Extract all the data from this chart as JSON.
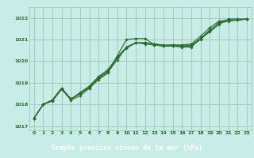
{
  "bg_color": "#c8ece6",
  "grid_color": "#a0ccbb",
  "line_color": "#2d6a2d",
  "marker_color": "#2d6a2d",
  "title": "Graphe pression niveau de la mer (hPa)",
  "title_bg": "#2d6a2d",
  "title_fg": "#ffffff",
  "ylim": [
    1016.8,
    1022.5
  ],
  "xlim": [
    -0.5,
    23.5
  ],
  "yticks": [
    1017,
    1018,
    1019,
    1020,
    1021,
    1022
  ],
  "xticks": [
    0,
    1,
    2,
    3,
    4,
    5,
    6,
    7,
    8,
    9,
    10,
    11,
    12,
    13,
    14,
    15,
    16,
    17,
    18,
    19,
    20,
    21,
    22,
    23
  ],
  "series": [
    [
      1017.35,
      1018.0,
      1018.2,
      1018.75,
      1018.25,
      1018.5,
      1018.8,
      1019.2,
      1019.5,
      1020.05,
      1020.65,
      1020.85,
      1020.85,
      1020.8,
      1020.75,
      1020.75,
      1020.7,
      1020.75,
      1021.05,
      1021.45,
      1021.75,
      1021.85,
      1021.9,
      1021.95
    ],
    [
      1017.35,
      1018.0,
      1018.2,
      1018.75,
      1018.25,
      1018.55,
      1018.85,
      1019.3,
      1019.6,
      1020.2,
      1020.65,
      1020.85,
      1020.8,
      1020.75,
      1020.7,
      1020.75,
      1020.75,
      1020.8,
      1021.15,
      1021.55,
      1021.85,
      1021.9,
      1021.9,
      1021.95
    ],
    [
      1017.35,
      1018.0,
      1018.2,
      1018.75,
      1018.25,
      1018.5,
      1018.8,
      1019.25,
      1019.55,
      1020.15,
      1020.6,
      1020.85,
      1020.85,
      1020.8,
      1020.7,
      1020.7,
      1020.7,
      1020.7,
      1021.0,
      1021.4,
      1021.8,
      1021.9,
      1021.9,
      1021.95
    ],
    [
      1017.35,
      1018.0,
      1018.15,
      1018.7,
      1018.2,
      1018.4,
      1018.75,
      1019.15,
      1019.45,
      1020.25,
      1021.0,
      1021.05,
      1021.05,
      1020.75,
      1020.7,
      1020.7,
      1020.65,
      1020.65,
      1021.05,
      1021.35,
      1021.7,
      1021.95,
      1021.95,
      1021.95
    ]
  ]
}
